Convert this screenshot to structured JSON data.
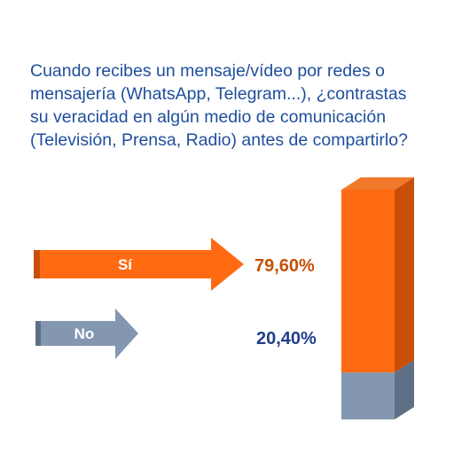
{
  "question": "Cuando recibes un mensaje/vídeo por redes o mensajería (WhatsApp, Telegram...), ¿contrastas su veracidad en algún medio de comunicación (Televisión, Prensa, Radio) antes de compartirlo?",
  "colors": {
    "title": "#1f4e9c",
    "si": "#ff6a13",
    "si_dark": "#c94e0a",
    "no": "#8497b0",
    "no_dark": "#5f6f85",
    "si_text": "#c45108",
    "no_text": "#1f3f8c"
  },
  "chart_data": {
    "type": "bar",
    "stacked": true,
    "categories": [
      "Sí",
      "No"
    ],
    "values": [
      79.6,
      20.4
    ],
    "value_labels": [
      "79,60%",
      "20,40%"
    ],
    "unit": "%"
  }
}
